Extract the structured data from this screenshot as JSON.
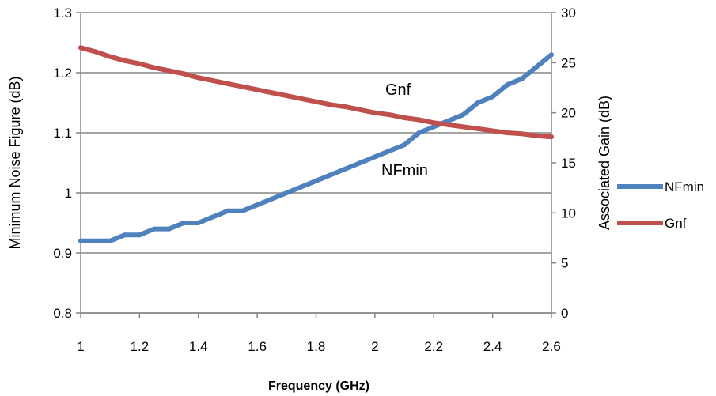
{
  "chart_data": {
    "type": "line",
    "xlabel": "Frequency (GHz)",
    "ylabel_left": "Minimum Noise Figure (dB)",
    "ylabel_right": "Associated Gain (dB)",
    "xlim": [
      1,
      2.6
    ],
    "ylim_left": [
      0.8,
      1.3
    ],
    "ylim_right": [
      0,
      30
    ],
    "x_ticks": [
      "1",
      "1.2",
      "1.4",
      "1.6",
      "1.8",
      "2",
      "2.2",
      "2.4",
      "2.6"
    ],
    "y_left_ticks": [
      "0.8",
      "0.9",
      "1",
      "1.1",
      "1.2",
      "1.3"
    ],
    "y_right_ticks": [
      "0",
      "5",
      "10",
      "15",
      "20",
      "25",
      "30"
    ],
    "grid": true,
    "legend_position": "right",
    "series": [
      {
        "name": "NFmin",
        "axis": "left",
        "color": "#4F81BD",
        "x": [
          1.0,
          1.05,
          1.1,
          1.15,
          1.2,
          1.25,
          1.3,
          1.35,
          1.4,
          1.45,
          1.5,
          1.55,
          1.6,
          1.65,
          1.7,
          1.75,
          1.8,
          1.85,
          1.9,
          1.95,
          2.0,
          2.05,
          2.1,
          2.15,
          2.2,
          2.25,
          2.3,
          2.35,
          2.4,
          2.45,
          2.5,
          2.55,
          2.6
        ],
        "values": [
          0.92,
          0.92,
          0.92,
          0.93,
          0.93,
          0.94,
          0.94,
          0.95,
          0.95,
          0.96,
          0.97,
          0.97,
          0.98,
          0.99,
          1.0,
          1.01,
          1.02,
          1.03,
          1.04,
          1.05,
          1.06,
          1.07,
          1.08,
          1.1,
          1.11,
          1.12,
          1.13,
          1.15,
          1.16,
          1.18,
          1.19,
          1.21,
          1.23
        ]
      },
      {
        "name": "Gnf",
        "axis": "right",
        "color": "#C0504D",
        "x": [
          1.0,
          1.05,
          1.1,
          1.15,
          1.2,
          1.25,
          1.3,
          1.35,
          1.4,
          1.45,
          1.5,
          1.55,
          1.6,
          1.65,
          1.7,
          1.75,
          1.8,
          1.85,
          1.9,
          1.95,
          2.0,
          2.05,
          2.1,
          2.15,
          2.2,
          2.25,
          2.3,
          2.35,
          2.4,
          2.45,
          2.5,
          2.55,
          2.6
        ],
        "values": [
          26.5,
          26.1,
          25.6,
          25.2,
          24.9,
          24.5,
          24.2,
          23.9,
          23.5,
          23.2,
          22.9,
          22.6,
          22.3,
          22.0,
          21.7,
          21.4,
          21.1,
          20.8,
          20.6,
          20.3,
          20.0,
          19.8,
          19.5,
          19.3,
          19.0,
          18.8,
          18.6,
          18.4,
          18.2,
          18.0,
          17.9,
          17.7,
          17.6
        ]
      }
    ],
    "annotations": [
      {
        "text": "Gnf",
        "x": 2.0,
        "y_right": 21.5
      },
      {
        "text": "NFmin",
        "x": 2.05,
        "y_left": 1.035
      }
    ]
  }
}
